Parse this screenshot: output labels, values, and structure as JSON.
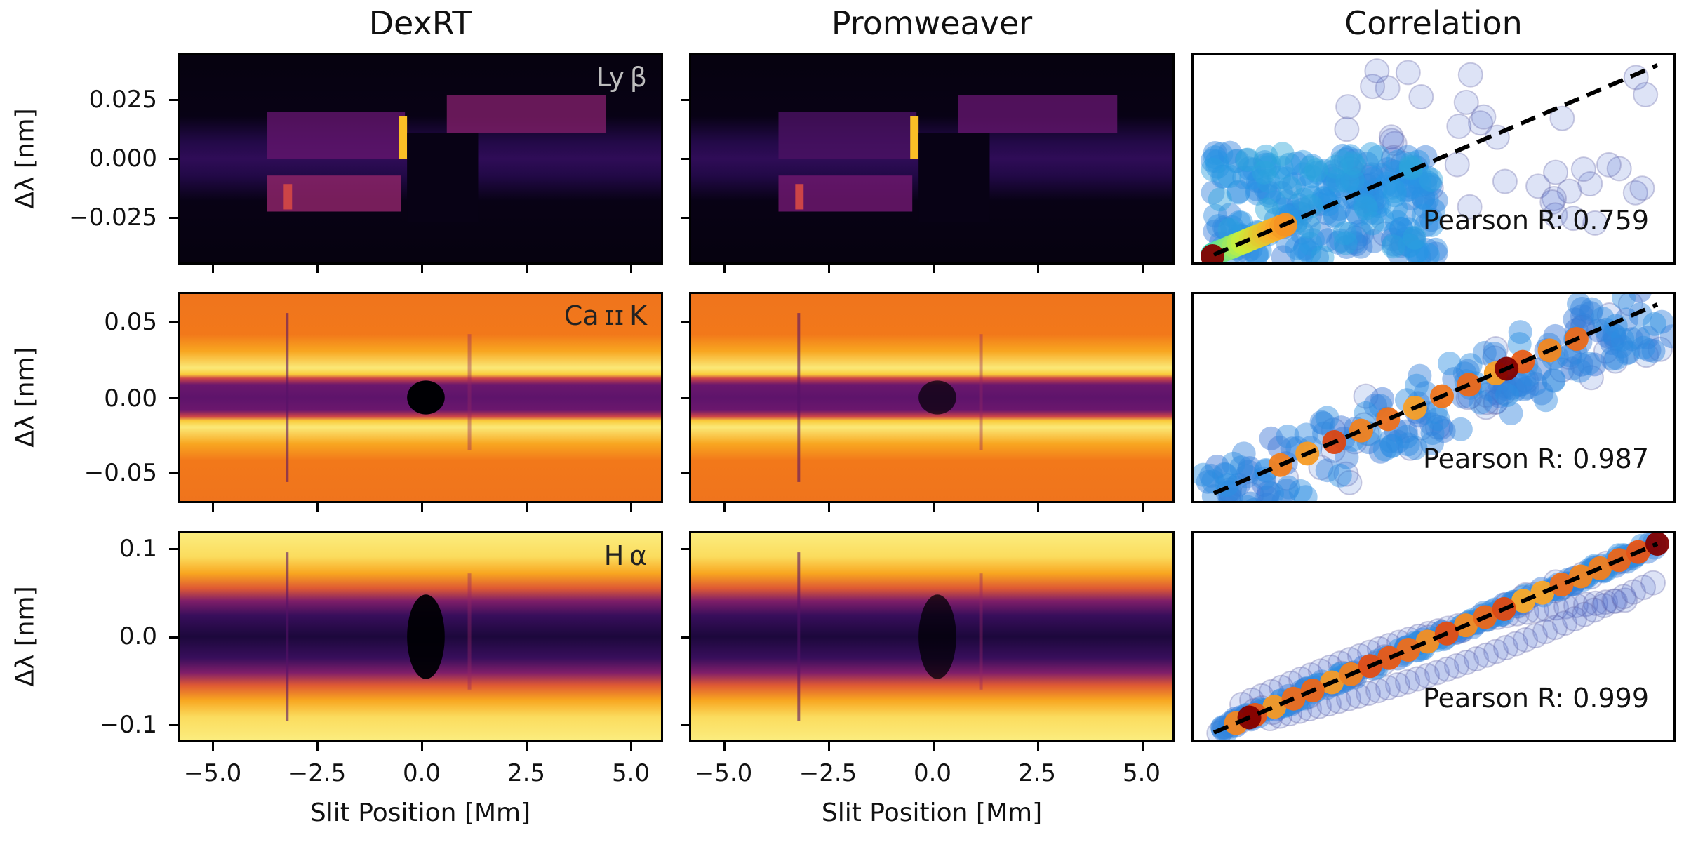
{
  "chart_data": [
    {
      "type": "heatmap",
      "title": "DexRT",
      "panel": "Ly β",
      "xlabel": "",
      "ylabel": "Δλ [nm]",
      "xlim": [
        -5.85,
        5.8
      ],
      "ylim": [
        -0.045,
        0.045
      ],
      "xticks": [
        -5.0,
        -2.5,
        0.0,
        2.5,
        5.0
      ],
      "yticks": [
        0.025,
        0.0,
        -0.025
      ],
      "ytick_labels": [
        "0.025",
        "0.000",
        "−0.025"
      ],
      "colormap": "inferno"
    },
    {
      "type": "heatmap",
      "title": "Promweaver",
      "panel": "Ly β",
      "xlim": [
        -5.85,
        5.8
      ],
      "ylim": [
        -0.045,
        0.045
      ],
      "xticks": [
        -5.0,
        -2.5,
        0.0,
        2.5,
        5.0
      ],
      "yticks": [
        0.025,
        0.0,
        -0.025
      ],
      "colormap": "inferno"
    },
    {
      "type": "scatter",
      "title": "Correlation",
      "panel": "Ly β",
      "pearson_r": 0.759,
      "annotation": "Pearson R: 0.759",
      "fit_line": "dashed black y=x"
    },
    {
      "type": "heatmap",
      "title": "DexRT",
      "panel": "Ca II K",
      "ylabel": "Δλ [nm]",
      "xlim": [
        -5.85,
        5.8
      ],
      "ylim": [
        -0.07,
        0.07
      ],
      "xticks": [
        -5.0,
        -2.5,
        0.0,
        2.5,
        5.0
      ],
      "yticks": [
        0.05,
        0.0,
        -0.05
      ],
      "ytick_labels": [
        "0.05",
        "0.00",
        "−0.05"
      ],
      "colormap": "inferno"
    },
    {
      "type": "heatmap",
      "title": "Promweaver",
      "panel": "Ca II K",
      "xlim": [
        -5.85,
        5.8
      ],
      "ylim": [
        -0.07,
        0.07
      ],
      "xticks": [
        -5.0,
        -2.5,
        0.0,
        2.5,
        5.0
      ],
      "yticks": [
        0.05,
        0.0,
        -0.05
      ],
      "colormap": "inferno"
    },
    {
      "type": "scatter",
      "title": "Correlation",
      "panel": "Ca II K",
      "pearson_r": 0.987,
      "annotation": "Pearson R: 0.987",
      "fit_line": "dashed black y=x"
    },
    {
      "type": "heatmap",
      "title": "DexRT",
      "panel": "H α",
      "xlabel": "Slit Position [Mm]",
      "ylabel": "Δλ [nm]",
      "xlim": [
        -5.85,
        5.8
      ],
      "ylim": [
        -0.12,
        0.12
      ],
      "xticks": [
        -5.0,
        -2.5,
        0.0,
        2.5,
        5.0
      ],
      "xtick_labels": [
        "−5.0",
        "−2.5",
        "0.0",
        "2.5",
        "5.0"
      ],
      "yticks": [
        0.1,
        0.0,
        -0.1
      ],
      "ytick_labels": [
        "0.1",
        "0.0",
        "−0.1"
      ],
      "colormap": "inferno"
    },
    {
      "type": "heatmap",
      "title": "Promweaver",
      "panel": "H α",
      "xlabel": "Slit Position [Mm]",
      "xlim": [
        -5.85,
        5.8
      ],
      "ylim": [
        -0.12,
        0.12
      ],
      "xticks": [
        -5.0,
        -2.5,
        0.0,
        2.5,
        5.0
      ],
      "xtick_labels": [
        "−5.0",
        "−2.5",
        "0.0",
        "2.5",
        "5.0"
      ],
      "yticks": [
        0.1,
        0.0,
        -0.1
      ],
      "colormap": "inferno"
    },
    {
      "type": "scatter",
      "title": "Correlation",
      "panel": "H α",
      "pearson_r": 0.999,
      "annotation": "Pearson R: 0.999",
      "fit_line": "dashed black y=x"
    }
  ],
  "columns": {
    "dexrt": "DexRT",
    "promweaver": "Promweaver",
    "correlation": "Correlation"
  },
  "rows": [
    {
      "line": "Ly β",
      "pearson": "Pearson R: 0.759",
      "yticks": [
        "0.025",
        "0.000",
        "−0.025"
      ]
    },
    {
      "line": "Ca ɪɪ K",
      "pearson": "Pearson R: 0.987",
      "yticks": [
        "0.05",
        "0.00",
        "−0.05"
      ]
    },
    {
      "line": "H α",
      "pearson": "Pearson R: 0.999",
      "yticks": [
        "0.1",
        "0.0",
        "−0.1"
      ]
    }
  ],
  "axes": {
    "ylabel": "Δλ [nm]",
    "xlabel": "Slit Position [Mm]",
    "xticks": [
      "−5.0",
      "−2.5",
      "0.0",
      "2.5",
      "5.0"
    ]
  }
}
